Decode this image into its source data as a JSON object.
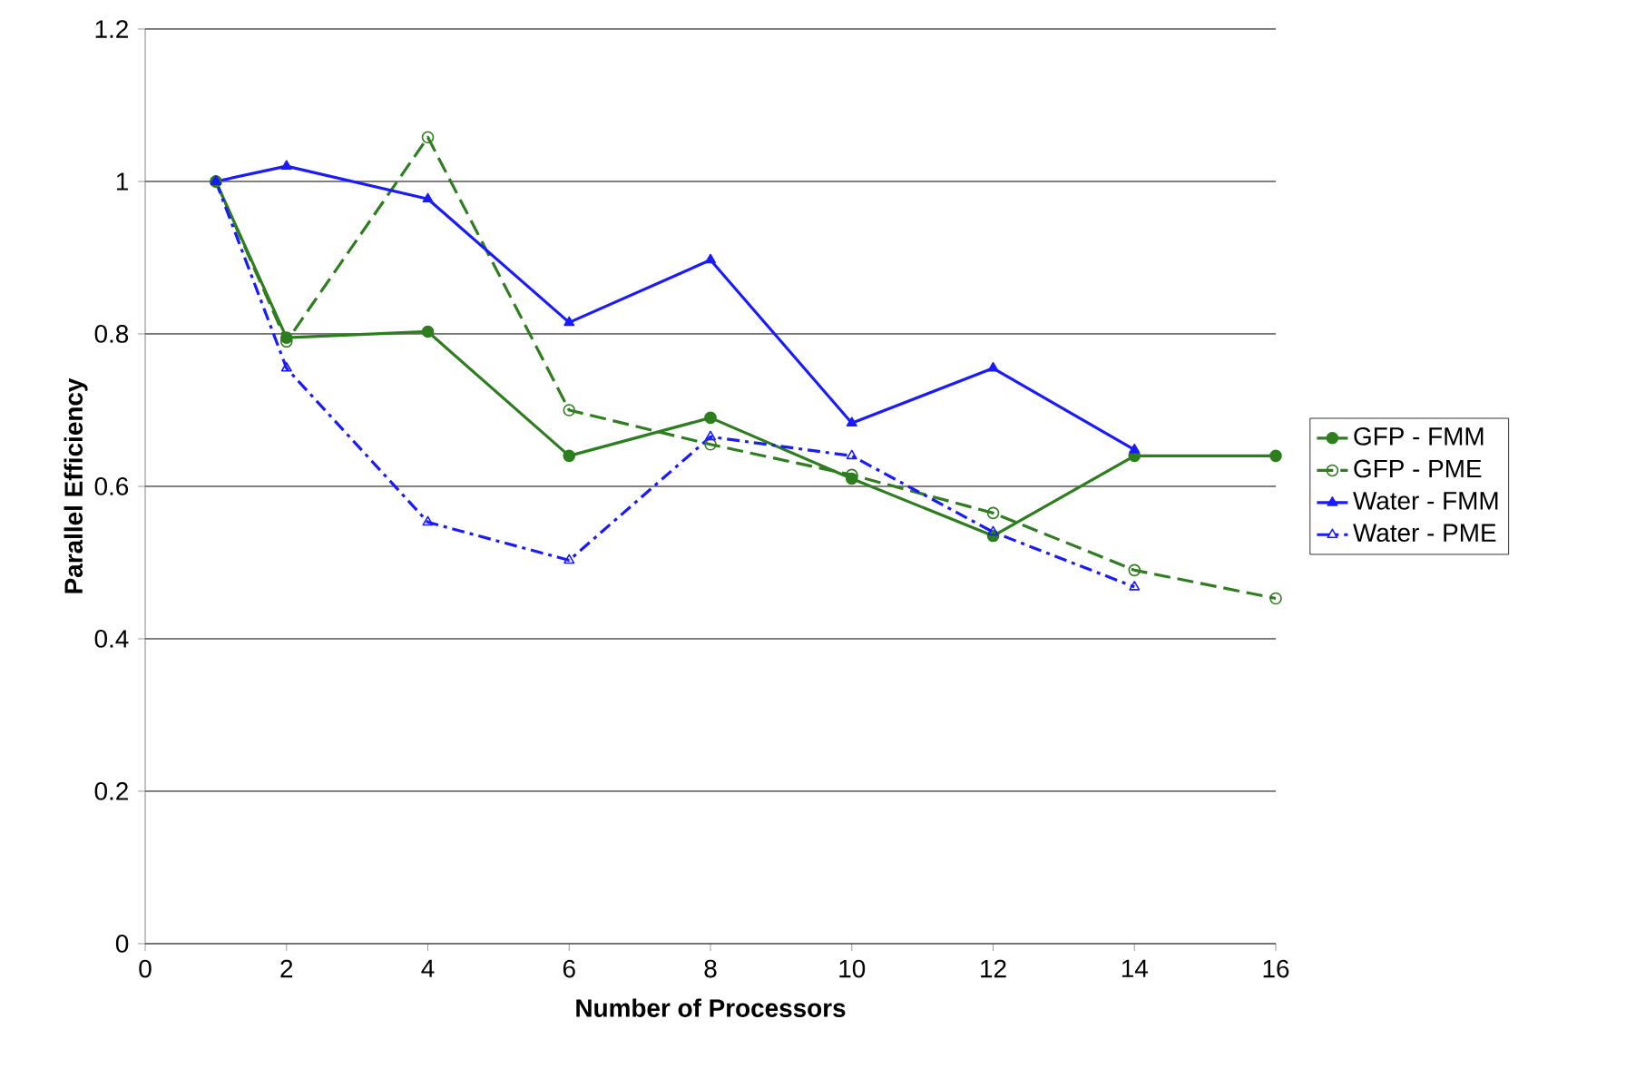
{
  "chart_data": {
    "type": "line",
    "xlabel": "Number of Processors",
    "ylabel": "Parallel Efficiency",
    "xlim": [
      0,
      16
    ],
    "xticks": [
      0,
      2,
      4,
      6,
      8,
      10,
      12,
      14,
      16
    ],
    "ylim": [
      0,
      1.2
    ],
    "yticks": [
      0,
      0.2,
      0.4,
      0.6,
      0.8,
      1,
      1.2
    ],
    "grid": "y",
    "legend": "right",
    "series": [
      {
        "name": "GFP - FMM",
        "color": "#2e7d1e",
        "marker": "circle",
        "line_style": "solid",
        "x": [
          1,
          2,
          4,
          6,
          8,
          10,
          12,
          14,
          16
        ],
        "values": [
          1.0,
          0.795,
          0.803,
          0.64,
          0.69,
          0.61,
          0.535,
          0.64,
          0.64
        ]
      },
      {
        "name": "GFP - PME",
        "color": "#2e7d1e",
        "marker": "circle",
        "line_style": "dashed",
        "x": [
          1,
          2,
          4,
          6,
          8,
          10,
          12,
          14,
          16
        ],
        "values": [
          1.0,
          0.79,
          1.058,
          0.7,
          0.655,
          0.615,
          0.565,
          0.49,
          0.453
        ]
      },
      {
        "name": "Water - FMM",
        "color": "#1a1aff",
        "marker": "triangle",
        "line_style": "solid",
        "x": [
          1,
          2,
          4,
          6,
          8,
          10,
          12,
          14
        ],
        "values": [
          1.0,
          1.02,
          0.977,
          0.815,
          0.897,
          0.683,
          0.755,
          0.648
        ]
      },
      {
        "name": "Water - PME",
        "color": "#1a1aff",
        "marker": "triangle",
        "line_style": "dashdotted",
        "x": [
          1,
          2,
          4,
          6,
          8,
          10,
          12,
          14
        ],
        "values": [
          1.0,
          0.755,
          0.553,
          0.503,
          0.665,
          0.64,
          0.54,
          0.468
        ]
      }
    ]
  }
}
